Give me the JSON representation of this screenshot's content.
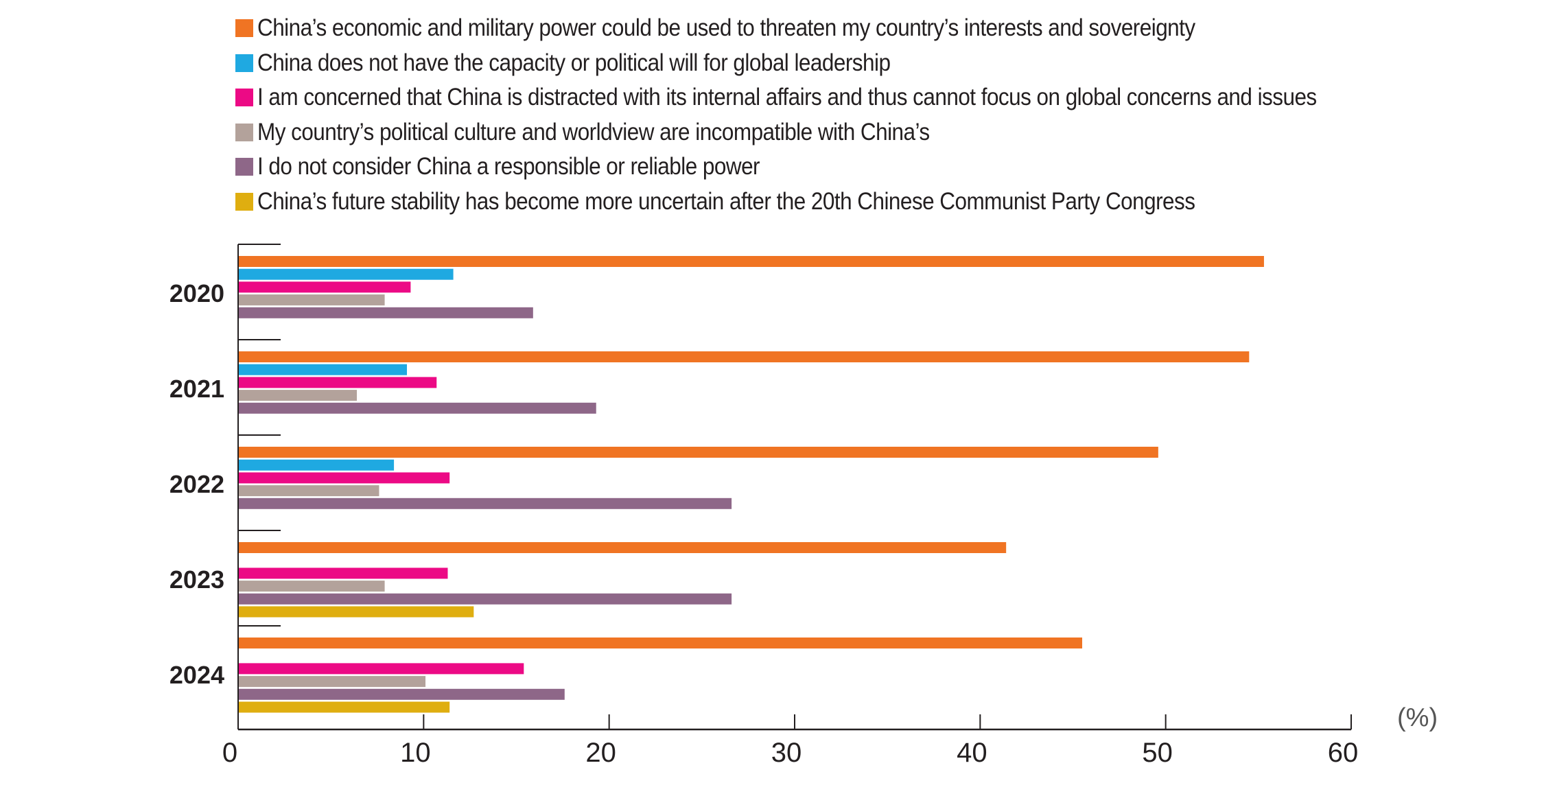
{
  "chart_data": {
    "type": "bar",
    "orientation": "horizontal",
    "categories": [
      "2020",
      "2021",
      "2022",
      "2023",
      "2024"
    ],
    "series": [
      {
        "name": "China’s economic and military power could be used to threaten my country’s interests and sovereignty",
        "color": "#f07423",
        "values": [
          55.3,
          54.5,
          49.6,
          41.4,
          45.5
        ]
      },
      {
        "name": "China does not have the capacity or political will for global leadership",
        "color": "#1fa9e1",
        "values": [
          11.6,
          9.1,
          8.4,
          null,
          null
        ]
      },
      {
        "name": "I am concerned that China is distracted with its internal affairs and thus cannot focus on global concerns and issues",
        "color": "#ec0a85",
        "values": [
          9.3,
          10.7,
          11.4,
          11.3,
          15.4
        ]
      },
      {
        "name": "My country’s political culture and worldview are incompatible with China’s",
        "color": "#b3a29b",
        "values": [
          7.9,
          6.4,
          7.6,
          7.9,
          10.1
        ]
      },
      {
        "name": "I do not consider China a responsible or reliable power",
        "color": "#8e6788",
        "values": [
          15.9,
          19.3,
          26.6,
          26.6,
          17.6
        ]
      },
      {
        "name": "China’s future stability has become more uncertain after the 20th Chinese Communist Party Congress",
        "color": "#dfae10",
        "values": [
          null,
          null,
          null,
          12.7,
          11.4
        ]
      }
    ],
    "xlim": [
      0,
      60
    ],
    "xticks": [
      "0",
      "10",
      "20",
      "30",
      "40",
      "50",
      "60"
    ],
    "xunit": "(%)",
    "legend_position": "top",
    "grid": false
  }
}
